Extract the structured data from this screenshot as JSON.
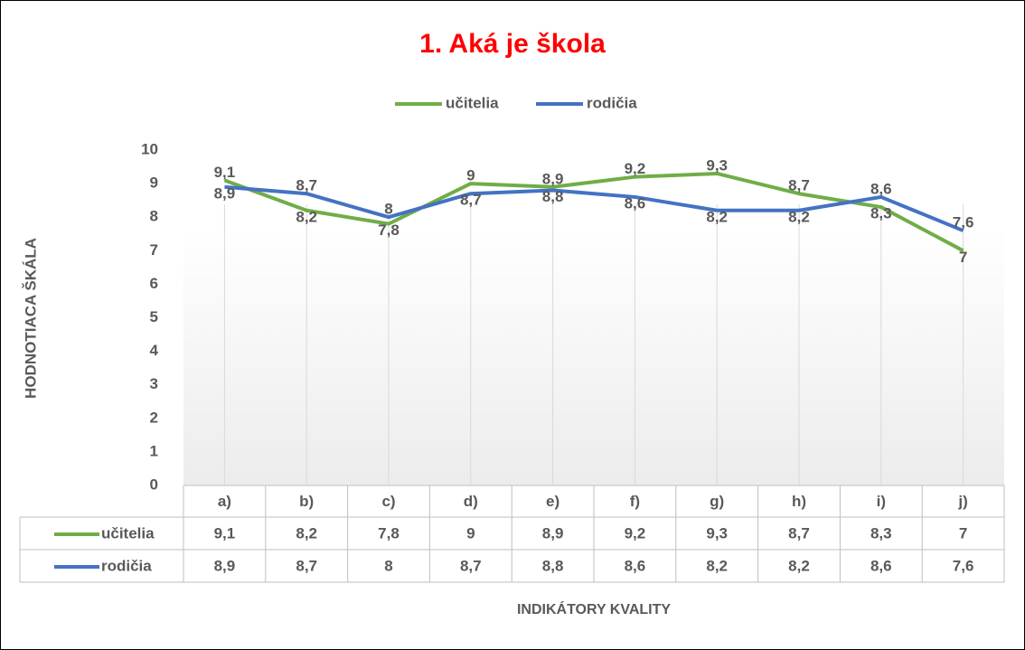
{
  "chart_data": {
    "type": "line",
    "title": "1. Aká je škola",
    "y_label": "HODNOTIACA ŠKÁLA",
    "x_label": "INDIKÁTORY KVALITY",
    "categories": [
      "a)",
      "b)",
      "c)",
      "d)",
      "e)",
      "f)",
      "g)",
      "h)",
      "i)",
      "j)"
    ],
    "series": [
      {
        "name": "učitelia",
        "color": "#70ad47",
        "values": [
          9.1,
          8.2,
          7.8,
          9,
          8.9,
          9.2,
          9.3,
          8.7,
          8.3,
          7
        ],
        "value_labels": [
          "9,1",
          "8,2",
          "7,8",
          "9",
          "8,9",
          "9,2",
          "9,3",
          "8,7",
          "8,3",
          "7"
        ]
      },
      {
        "name": "rodičia",
        "color": "#4472c4",
        "values": [
          8.9,
          8.7,
          8,
          8.7,
          8.8,
          8.6,
          8.2,
          8.2,
          8.6,
          7.6
        ],
        "value_labels": [
          "8,9",
          "8,7",
          "8",
          "8,7",
          "8,8",
          "8,6",
          "8,2",
          "8,2",
          "8,6",
          "7,6"
        ]
      }
    ],
    "ylim": [
      0,
      10
    ],
    "yticks": [
      0,
      1,
      2,
      3,
      4,
      5,
      6,
      7,
      8,
      9,
      10
    ],
    "grid": "x",
    "legend": "top",
    "data_table": true
  }
}
